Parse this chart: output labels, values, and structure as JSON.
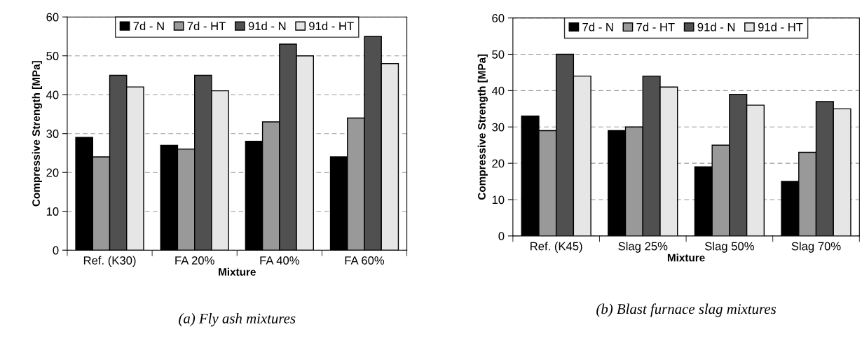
{
  "chart_data": [
    {
      "type": "bar",
      "categories": [
        "Ref. (K30)",
        "FA 20%",
        "FA 40%",
        "FA 60%"
      ],
      "xlabel": "Mixture",
      "ylabel": "Compressive Strength [MPa]",
      "ylim": [
        0,
        60
      ],
      "yticks": [
        0,
        10,
        20,
        30,
        40,
        50,
        60
      ],
      "grid": "y",
      "legend": "top",
      "series": [
        {
          "name": "7d - N",
          "color": "#000000",
          "values": [
            29,
            27,
            28,
            24
          ]
        },
        {
          "name": "7d - HT",
          "color": "#999999",
          "values": [
            24,
            26,
            33,
            34
          ]
        },
        {
          "name": "91d - N",
          "color": "#505050",
          "values": [
            45,
            45,
            53,
            55
          ]
        },
        {
          "name": "91d - HT",
          "color": "#e6e6e6",
          "values": [
            42,
            41,
            50,
            48
          ]
        }
      ],
      "annotations": [
        "(a) Fly ash mixtures"
      ]
    },
    {
      "type": "bar",
      "categories": [
        "Ref. (K45)",
        "Slag 25%",
        "Slag 50%",
        "Slag 70%"
      ],
      "xlabel": "Mixture",
      "ylabel": "Compressive Strength [MPa]",
      "ylim": [
        0,
        60
      ],
      "yticks": [
        0,
        10,
        20,
        30,
        40,
        50,
        60
      ],
      "grid": "y",
      "legend": "top",
      "series": [
        {
          "name": "7d - N",
          "color": "#000000",
          "values": [
            33,
            29,
            19,
            15
          ]
        },
        {
          "name": "7d - HT",
          "color": "#999999",
          "values": [
            29,
            30,
            25,
            23
          ]
        },
        {
          "name": "91d - N",
          "color": "#505050",
          "values": [
            50,
            44,
            39,
            37
          ]
        },
        {
          "name": "91d - HT",
          "color": "#e6e6e6",
          "values": [
            44,
            41,
            36,
            35
          ]
        }
      ],
      "annotations": [
        "(b) Blast furnace slag mixtures"
      ]
    }
  ]
}
